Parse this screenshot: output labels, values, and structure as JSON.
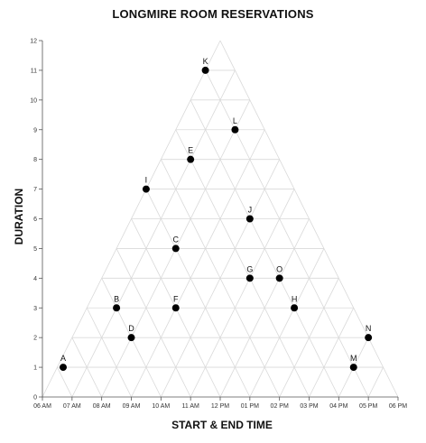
{
  "chart_data": {
    "type": "scatter",
    "title": "LONGMIRE ROOM RESERVATIONS",
    "xlabel": "START & END TIME",
    "ylabel": "DURATION",
    "x_unit": "hours",
    "xlim": [
      6,
      18
    ],
    "ylim": [
      0,
      12
    ],
    "x_ticks": [
      {
        "value": 6,
        "label": "06 AM"
      },
      {
        "value": 7,
        "label": "07 AM"
      },
      {
        "value": 8,
        "label": "08 AM"
      },
      {
        "value": 9,
        "label": "09 AM"
      },
      {
        "value": 10,
        "label": "10 AM"
      },
      {
        "value": 11,
        "label": "11 AM"
      },
      {
        "value": 12,
        "label": "12 PM"
      },
      {
        "value": 13,
        "label": "01 PM"
      },
      {
        "value": 14,
        "label": "02 PM"
      },
      {
        "value": 15,
        "label": "03 PM"
      },
      {
        "value": 16,
        "label": "04 PM"
      },
      {
        "value": 17,
        "label": "05 PM"
      },
      {
        "value": 18,
        "label": "06 PM"
      }
    ],
    "y_ticks": [
      0,
      1,
      2,
      3,
      4,
      5,
      6,
      7,
      8,
      9,
      10,
      11,
      12
    ],
    "grid": "triangular",
    "points": [
      {
        "label": "A",
        "x": 6.7,
        "y": 1
      },
      {
        "label": "B",
        "x": 8.5,
        "y": 3
      },
      {
        "label": "C",
        "x": 10.5,
        "y": 5
      },
      {
        "label": "D",
        "x": 9.0,
        "y": 2
      },
      {
        "label": "E",
        "x": 11.0,
        "y": 8
      },
      {
        "label": "F",
        "x": 10.5,
        "y": 3
      },
      {
        "label": "G",
        "x": 13.0,
        "y": 4
      },
      {
        "label": "H",
        "x": 14.5,
        "y": 3
      },
      {
        "label": "I",
        "x": 9.5,
        "y": 7
      },
      {
        "label": "J",
        "x": 13.0,
        "y": 6
      },
      {
        "label": "K",
        "x": 11.5,
        "y": 11
      },
      {
        "label": "L",
        "x": 12.5,
        "y": 9
      },
      {
        "label": "M",
        "x": 16.5,
        "y": 1
      },
      {
        "label": "N",
        "x": 17.0,
        "y": 2
      },
      {
        "label": "O",
        "x": 14.0,
        "y": 4
      }
    ]
  }
}
